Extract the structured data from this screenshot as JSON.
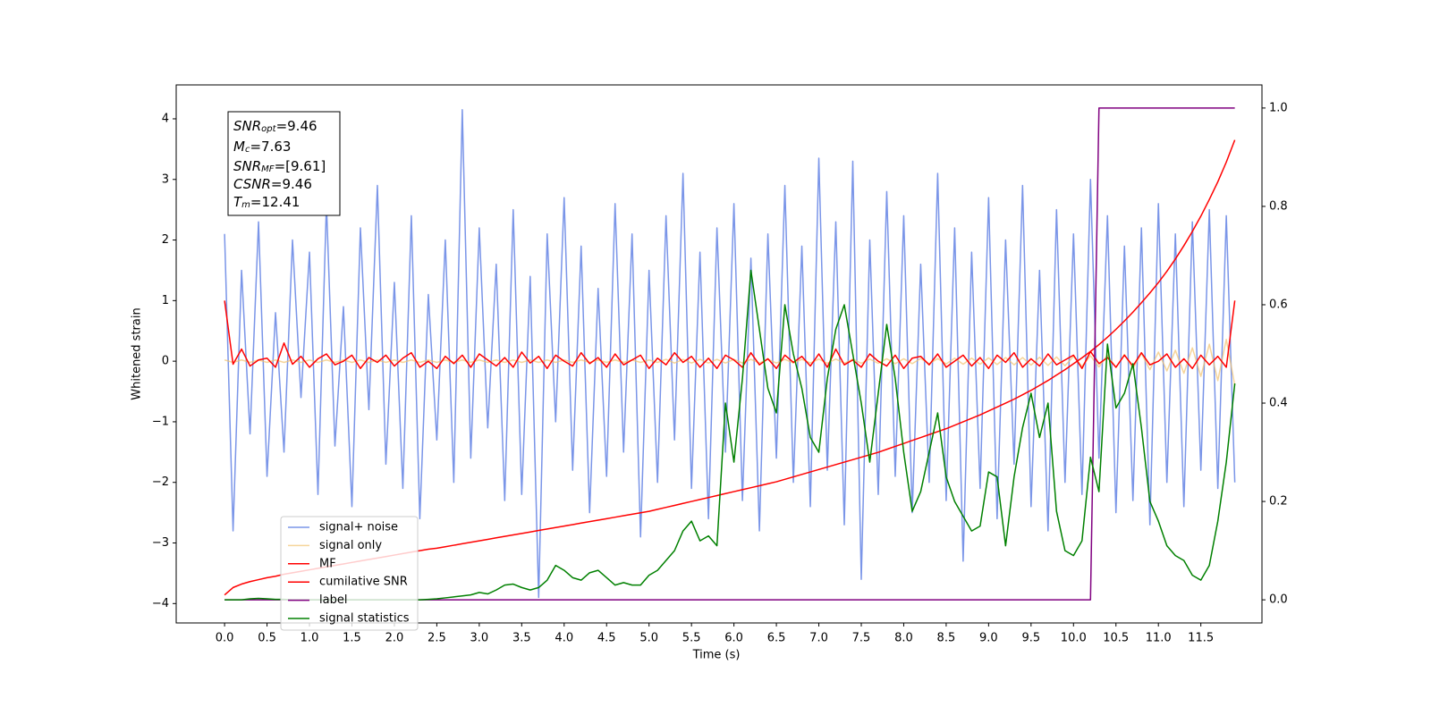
{
  "chart_data": {
    "type": "line",
    "xlabel": "Time (s)",
    "ylabel": "Whitened strain",
    "xlim": [
      -0.57,
      12.22
    ],
    "ylim": [
      -4.32,
      4.56
    ],
    "y2lim": [
      -0.047,
      1.047
    ],
    "xticks": [
      {
        "value": 0,
        "label": "0.0"
      },
      0.5,
      {
        "value": 1,
        "label": "1.0"
      },
      1.5,
      {
        "value": 2,
        "label": "2.0"
      },
      2.5,
      {
        "value": 3,
        "label": "3.0"
      },
      3.5,
      {
        "value": 4,
        "label": "4.0"
      },
      4.5,
      {
        "value": 5,
        "label": "5.0"
      },
      5.5,
      {
        "value": 6,
        "label": "6.0"
      },
      6.5,
      {
        "value": 7,
        "label": "7.0"
      },
      7.5,
      {
        "value": 8,
        "label": "8.0"
      },
      8.5,
      {
        "value": 9,
        "label": "9.0"
      },
      9.5,
      {
        "value": 10,
        "label": "10.0"
      },
      10.5,
      {
        "value": 11,
        "label": "11.0"
      },
      11.5
    ],
    "yticks": [
      {
        "value": -4,
        "label": "−4"
      },
      {
        "value": -3,
        "label": "−3"
      },
      {
        "value": -2,
        "label": "−2"
      },
      {
        "value": -1,
        "label": "−1"
      },
      0,
      1,
      2,
      3,
      4
    ],
    "y2ticks": [
      {
        "value": 0,
        "label": "0.0"
      },
      0.2,
      0.4,
      0.6,
      0.8,
      {
        "value": 1,
        "label": "1.0"
      }
    ],
    "annotations": [
      {
        "base": "SNR",
        "sub": "opt",
        "text": "=9.46"
      },
      {
        "base": "M",
        "sub": "c",
        "text": "=7.63"
      },
      {
        "base": "SNR",
        "sub": "MF",
        "text": "=[9.61]"
      },
      {
        "base": "CSNR",
        "sub": "",
        "text": "=9.46"
      },
      {
        "base": "T",
        "sub": "m",
        "text": "=12.41"
      }
    ],
    "x": [
      0,
      0.1,
      0.2,
      0.3,
      0.4,
      0.5,
      0.6,
      0.7,
      0.8,
      0.9,
      1,
      1.1,
      1.2,
      1.3,
      1.4,
      1.5,
      1.6,
      1.7,
      1.8,
      1.9,
      2,
      2.1,
      2.2,
      2.3,
      2.4,
      2.5,
      2.6,
      2.7,
      2.8,
      2.9,
      3,
      3.1,
      3.2,
      3.3,
      3.4,
      3.5,
      3.6,
      3.7,
      3.8,
      3.9,
      4,
      4.1,
      4.2,
      4.3,
      4.4,
      4.5,
      4.6,
      4.7,
      4.8,
      4.9,
      5,
      5.1,
      5.2,
      5.3,
      5.4,
      5.5,
      5.6,
      5.7,
      5.8,
      5.9,
      6,
      6.1,
      6.2,
      6.3,
      6.4,
      6.5,
      6.6,
      6.7,
      6.8,
      6.9,
      7,
      7.1,
      7.2,
      7.3,
      7.4,
      7.5,
      7.6,
      7.7,
      7.8,
      7.9,
      8,
      8.1,
      8.2,
      8.3,
      8.4,
      8.5,
      8.6,
      8.7,
      8.8,
      8.9,
      9,
      9.1,
      9.2,
      9.3,
      9.4,
      9.5,
      9.6,
      9.7,
      9.8,
      9.9,
      10,
      10.1,
      10.2,
      10.3,
      10.4,
      10.5,
      10.6,
      10.7,
      10.8,
      10.9,
      11,
      11.1,
      11.2,
      11.3,
      11.4,
      11.5,
      11.6,
      11.7,
      11.8,
      11.9
    ],
    "series": [
      {
        "name": "signal+ noise",
        "color": "#7a95e8",
        "values": [
          2.1,
          -2.8,
          1.5,
          -1.2,
          2.3,
          -1.9,
          0.8,
          -1.5,
          2.0,
          -0.6,
          1.8,
          -2.2,
          2.6,
          -1.4,
          0.9,
          -2.4,
          2.2,
          -0.8,
          2.9,
          -1.7,
          1.3,
          -2.1,
          2.4,
          -2.6,
          1.1,
          -1.3,
          2.0,
          -2.0,
          4.15,
          -1.6,
          2.2,
          -1.1,
          1.6,
          -2.3,
          2.5,
          -2.2,
          1.4,
          -3.9,
          2.1,
          -1.0,
          2.7,
          -1.8,
          1.9,
          -2.5,
          1.2,
          -1.9,
          2.6,
          -1.5,
          2.1,
          -2.9,
          1.5,
          -2.0,
          2.4,
          -1.3,
          3.1,
          -2.1,
          1.8,
          -2.6,
          2.2,
          -1.5,
          2.6,
          -2.3,
          1.7,
          -2.8,
          2.1,
          -1.6,
          2.9,
          -2.0,
          1.9,
          -2.4,
          3.35,
          -1.8,
          2.3,
          -2.7,
          3.3,
          -3.6,
          2.0,
          -2.2,
          2.8,
          -1.9,
          2.4,
          -2.5,
          1.6,
          -2.0,
          3.1,
          -2.3,
          2.2,
          -3.3,
          1.8,
          -2.1,
          2.7,
          -2.6,
          2.0,
          -1.7,
          2.9,
          -2.4,
          1.5,
          -2.8,
          2.5,
          -2.0,
          2.1,
          -2.2,
          3.0,
          -1.6,
          2.4,
          -2.5,
          1.9,
          -2.3,
          2.2,
          -2.7,
          2.6,
          -2.0,
          2.1,
          -2.4,
          2.3,
          -1.8,
          2.5,
          -2.1,
          2.4,
          -2.0
        ]
      },
      {
        "name": "signal only",
        "color": "#f2c36f",
        "values": [
          0.02,
          -0.02,
          0.02,
          -0.02,
          0.02,
          -0.02,
          0.02,
          -0.02,
          0.02,
          -0.02,
          0.02,
          -0.02,
          0.02,
          -0.02,
          0.02,
          -0.02,
          0.02,
          -0.02,
          0.02,
          -0.02,
          0.02,
          -0.02,
          0.02,
          -0.02,
          0.02,
          -0.02,
          0.02,
          -0.02,
          0.02,
          -0.02,
          0.02,
          -0.02,
          0.02,
          -0.02,
          0.02,
          -0.02,
          0.02,
          -0.02,
          0.02,
          -0.02,
          0.02,
          -0.02,
          0.02,
          -0.02,
          0.02,
          -0.02,
          0.02,
          -0.02,
          0.02,
          -0.02,
          0.02,
          -0.02,
          0.03,
          -0.03,
          0.03,
          -0.03,
          0.03,
          -0.03,
          0.03,
          -0.03,
          0.03,
          -0.03,
          0.03,
          -0.03,
          0.03,
          -0.03,
          0.03,
          -0.03,
          0.03,
          -0.03,
          0.035,
          -0.035,
          0.035,
          -0.035,
          0.035,
          -0.035,
          0.035,
          -0.035,
          0.04,
          -0.04,
          0.04,
          -0.04,
          0.045,
          -0.045,
          0.045,
          -0.045,
          0.05,
          -0.05,
          0.05,
          -0.05,
          0.055,
          -0.055,
          0.06,
          -0.06,
          0.06,
          -0.065,
          0.065,
          -0.07,
          0.07,
          -0.075,
          0.08,
          -0.085,
          0.09,
          -0.095,
          0.1,
          -0.105,
          0.11,
          -0.12,
          0.13,
          -0.14,
          0.15,
          -0.16,
          0.18,
          -0.2,
          0.22,
          -0.25,
          0.28,
          -0.32,
          0.36,
          -0.4
        ]
      },
      {
        "name": "MF",
        "color": "#ff0000",
        "values": [
          1.0,
          -0.05,
          0.2,
          -0.08,
          0.02,
          0.05,
          -0.1,
          0.3,
          -0.05,
          0.08,
          -0.1,
          0.04,
          0.12,
          -0.06,
          0.0,
          0.1,
          -0.12,
          0.06,
          -0.02,
          0.1,
          -0.08,
          0.05,
          0.14,
          -0.1,
          0.0,
          -0.12,
          0.08,
          -0.04,
          0.1,
          -0.1,
          0.12,
          0.02,
          -0.08,
          0.06,
          -0.1,
          0.15,
          -0.03,
          0.08,
          -0.12,
          0.1,
          0.0,
          -0.08,
          0.14,
          -0.04,
          0.06,
          -0.1,
          0.12,
          -0.06,
          0.02,
          0.1,
          -0.12,
          0.05,
          -0.06,
          0.14,
          -0.02,
          0.08,
          -0.1,
          0.05,
          -0.12,
          0.1,
          0.02,
          -0.1,
          0.14,
          -0.06,
          0.04,
          -0.12,
          0.1,
          -0.02,
          0.08,
          -0.08,
          0.12,
          -0.1,
          0.2,
          -0.06,
          0.02,
          -0.1,
          0.12,
          0.0,
          -0.08,
          0.1,
          -0.12,
          0.05,
          0.08,
          -0.06,
          0.12,
          -0.1,
          0.0,
          0.1,
          -0.08,
          0.06,
          -0.12,
          0.1,
          -0.02,
          0.14,
          -0.1,
          0.04,
          -0.08,
          0.12,
          -0.06,
          0.02,
          0.1,
          -0.12,
          0.16,
          -0.04,
          0.06,
          -0.1,
          0.1,
          -0.08,
          0.14,
          -0.06,
          0.0,
          0.12,
          -0.1,
          0.04,
          -0.12,
          0.1,
          -0.06,
          0.08,
          -0.1,
          1.0
        ]
      },
      {
        "name": "cumilative SNR",
        "color": "#ff0000",
        "axis": "y2",
        "values": [
          0.01,
          0.025,
          0.032,
          0.037,
          0.041,
          0.045,
          0.048,
          0.052,
          0.055,
          0.058,
          0.061,
          0.064,
          0.067,
          0.07,
          0.073,
          0.076,
          0.079,
          0.082,
          0.085,
          0.088,
          0.091,
          0.094,
          0.097,
          0.1,
          0.103,
          0.105,
          0.108,
          0.111,
          0.114,
          0.117,
          0.12,
          0.123,
          0.126,
          0.129,
          0.132,
          0.135,
          0.138,
          0.141,
          0.144,
          0.147,
          0.15,
          0.153,
          0.156,
          0.159,
          0.162,
          0.165,
          0.168,
          0.171,
          0.174,
          0.177,
          0.18,
          0.184,
          0.188,
          0.192,
          0.196,
          0.2,
          0.204,
          0.208,
          0.212,
          0.216,
          0.22,
          0.224,
          0.228,
          0.232,
          0.236,
          0.24,
          0.245,
          0.25,
          0.255,
          0.26,
          0.265,
          0.27,
          0.275,
          0.28,
          0.285,
          0.29,
          0.295,
          0.3,
          0.306,
          0.312,
          0.318,
          0.324,
          0.33,
          0.336,
          0.342,
          0.348,
          0.355,
          0.362,
          0.369,
          0.376,
          0.384,
          0.392,
          0.4,
          0.408,
          0.417,
          0.426,
          0.436,
          0.446,
          0.457,
          0.468,
          0.48,
          0.492,
          0.505,
          0.519,
          0.534,
          0.55,
          0.567,
          0.585,
          0.604,
          0.624,
          0.645,
          0.668,
          0.693,
          0.72,
          0.749,
          0.78,
          0.814,
          0.85,
          0.89,
          0.935
        ]
      },
      {
        "name": "label",
        "color": "#800080",
        "axis": "y2",
        "values": [
          0,
          0,
          0,
          0,
          0,
          0,
          0,
          0,
          0,
          0,
          0,
          0,
          0,
          0,
          0,
          0,
          0,
          0,
          0,
          0,
          0,
          0,
          0,
          0,
          0,
          0,
          0,
          0,
          0,
          0,
          0,
          0,
          0,
          0,
          0,
          0,
          0,
          0,
          0,
          0,
          0,
          0,
          0,
          0,
          0,
          0,
          0,
          0,
          0,
          0,
          0,
          0,
          0,
          0,
          0,
          0,
          0,
          0,
          0,
          0,
          0,
          0,
          0,
          0,
          0,
          0,
          0,
          0,
          0,
          0,
          0,
          0,
          0,
          0,
          0,
          0,
          0,
          0,
          0,
          0,
          0,
          0,
          0,
          0,
          0,
          0,
          0,
          0,
          0,
          0,
          0,
          0,
          0,
          0,
          0,
          0,
          0,
          0,
          0,
          0,
          0,
          0,
          0,
          1,
          1,
          1,
          1,
          1,
          1,
          1,
          1,
          1,
          1,
          1,
          1,
          1,
          1,
          1,
          1,
          1
        ]
      },
      {
        "name": "signal statistics",
        "color": "#008000",
        "axis": "y2",
        "values": [
          0,
          0,
          0,
          0.002,
          0.003,
          0.002,
          0.001,
          0.001,
          0,
          0,
          0,
          0,
          0,
          0,
          0,
          0,
          0,
          0,
          0,
          0,
          0,
          0,
          0,
          0,
          0.001,
          0.002,
          0.004,
          0.006,
          0.008,
          0.01,
          0.015,
          0.012,
          0.02,
          0.03,
          0.032,
          0.025,
          0.02,
          0.025,
          0.04,
          0.07,
          0.06,
          0.045,
          0.04,
          0.055,
          0.06,
          0.045,
          0.03,
          0.035,
          0.03,
          0.03,
          0.05,
          0.06,
          0.08,
          0.1,
          0.14,
          0.16,
          0.12,
          0.13,
          0.11,
          0.4,
          0.28,
          0.45,
          0.67,
          0.55,
          0.43,
          0.38,
          0.6,
          0.5,
          0.43,
          0.33,
          0.3,
          0.45,
          0.55,
          0.6,
          0.5,
          0.4,
          0.28,
          0.42,
          0.56,
          0.45,
          0.3,
          0.18,
          0.22,
          0.3,
          0.38,
          0.25,
          0.2,
          0.17,
          0.14,
          0.15,
          0.26,
          0.25,
          0.11,
          0.25,
          0.35,
          0.42,
          0.33,
          0.4,
          0.18,
          0.1,
          0.09,
          0.12,
          0.29,
          0.22,
          0.52,
          0.39,
          0.42,
          0.48,
          0.35,
          0.2,
          0.16,
          0.11,
          0.09,
          0.08,
          0.05,
          0.04,
          0.07,
          0.16,
          0.28,
          0.44
        ]
      }
    ]
  }
}
